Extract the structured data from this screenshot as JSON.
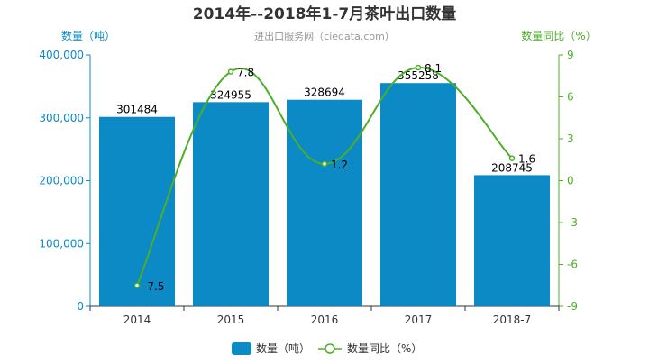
{
  "chart_data": {
    "type": "bar",
    "title": "2014年--2018年1-7月茶叶出口数量",
    "subtitle": "进出口服务网（ciedata.com）",
    "categories": [
      "2014",
      "2015",
      "2016",
      "2017",
      "2018-7"
    ],
    "ylabel_left": "数量（吨）",
    "ylabel_right": "数量同比（%）",
    "ylim_left": [
      0,
      400000
    ],
    "yticks_left": [
      "0",
      "100,000",
      "200,000",
      "300,000",
      "400,000"
    ],
    "ylim_right": [
      -9,
      9
    ],
    "yticks_right": [
      "-9",
      "-6",
      "-3",
      "0",
      "3",
      "6",
      "9"
    ],
    "series": [
      {
        "name": "数量（吨）",
        "type": "bar",
        "axis": "left",
        "values": [
          301484,
          324955,
          328694,
          355258,
          208745
        ],
        "labels": [
          "301484",
          "324955",
          "328694",
          "355258",
          "208745"
        ]
      },
      {
        "name": "数量同比（%）",
        "type": "line",
        "axis": "right",
        "values": [
          -7.5,
          7.8,
          1.2,
          8.1,
          1.6
        ],
        "labels": [
          "-7.5",
          "7.8",
          "1.2",
          "8.1",
          "1.6"
        ]
      }
    ],
    "grid": false,
    "legend": "bottom-center",
    "colors": {
      "bar": "#0b8ac6",
      "line": "#4caf27",
      "title": "#333333",
      "subtitle": "#999999"
    }
  }
}
